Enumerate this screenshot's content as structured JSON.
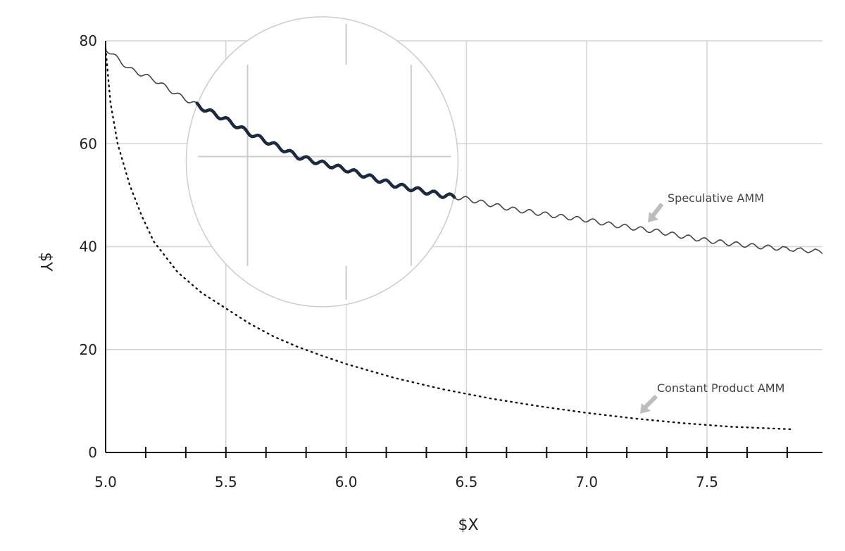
{
  "chart_data": {
    "type": "line",
    "xlabel": "$X",
    "ylabel": "$Y",
    "xlim": [
      5.0,
      7.98
    ],
    "ylim": [
      0,
      80
    ],
    "x_ticks": [
      "5.0",
      "5.5",
      "6.0",
      "6.5",
      "7.0",
      "7.5"
    ],
    "y_ticks": [
      "0",
      "20",
      "40",
      "60",
      "80"
    ],
    "grid": true,
    "legend": "none",
    "annotations": [
      {
        "text": "Speculative AMM",
        "series": "speculative"
      },
      {
        "text": "Constant Product AMM",
        "series": "constant_product"
      }
    ],
    "highlight_region": {
      "x": [
        5.38,
        6.45
      ]
    },
    "series": [
      {
        "id": "speculative",
        "style": "solid",
        "color": "#444444",
        "highlight_color": "#1b2a3f",
        "x": [
          5.0,
          5.1,
          5.2,
          5.3,
          5.4,
          5.5,
          5.6,
          5.7,
          5.8,
          5.9,
          6.0,
          6.1,
          6.2,
          6.3,
          6.4,
          6.5,
          6.6,
          6.7,
          6.8,
          6.9,
          7.0,
          7.1,
          7.2,
          7.3,
          7.4,
          7.5,
          7.6,
          7.7,
          7.8,
          7.98
        ],
        "y": [
          78.5,
          74.5,
          72.5,
          69.5,
          67,
          64.7,
          62,
          59.8,
          57.5,
          56.2,
          55,
          53.5,
          52,
          51,
          50,
          49.3,
          48.2,
          47.2,
          46.5,
          45.8,
          45.2,
          44.3,
          43.6,
          42.9,
          42,
          41.2,
          40.6,
          40.1,
          39.7,
          39
        ]
      },
      {
        "id": "constant_product",
        "style": "dotted",
        "color": "#111111",
        "x": [
          5.0,
          5.02,
          5.05,
          5.1,
          5.15,
          5.2,
          5.3,
          5.4,
          5.5,
          5.6,
          5.7,
          5.8,
          5.9,
          6.0,
          6.2,
          6.4,
          6.6,
          6.8,
          7.0,
          7.2,
          7.4,
          7.6,
          7.86
        ],
        "y": [
          78.5,
          68,
          60,
          52,
          46,
          41,
          35,
          31,
          28,
          25,
          22.5,
          20.5,
          18.8,
          17.2,
          14.5,
          12.3,
          10.5,
          9,
          7.7,
          6.6,
          5.7,
          5,
          4.5
        ]
      }
    ]
  }
}
